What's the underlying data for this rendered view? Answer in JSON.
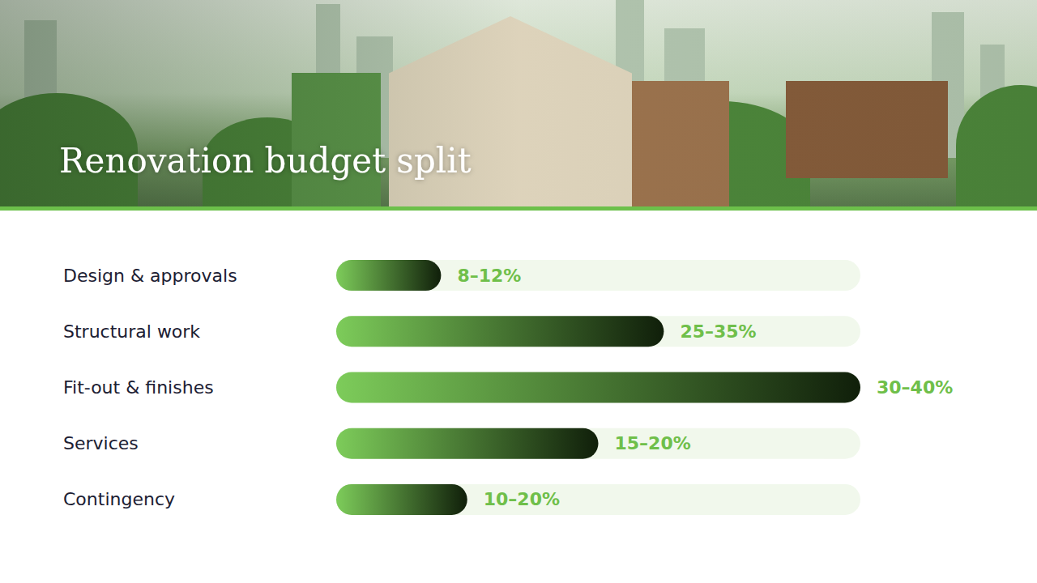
{
  "chart_data": {
    "type": "bar",
    "title": "Renovation budget split",
    "orientation": "horizontal",
    "categories": [
      "Design & approvals",
      "Structural work",
      "Fit-out & finishes",
      "Services",
      "Contingency"
    ],
    "values": [
      8,
      25,
      40,
      20,
      10
    ],
    "value_labels": [
      "8–12%",
      "25–35%",
      "30–40%",
      "15–20%",
      "10–20%"
    ],
    "color": "#7dcc5a",
    "xlim": [
      0,
      40
    ],
    "grid": false,
    "data_labels": true,
    "tick_labels": "y"
  }
}
